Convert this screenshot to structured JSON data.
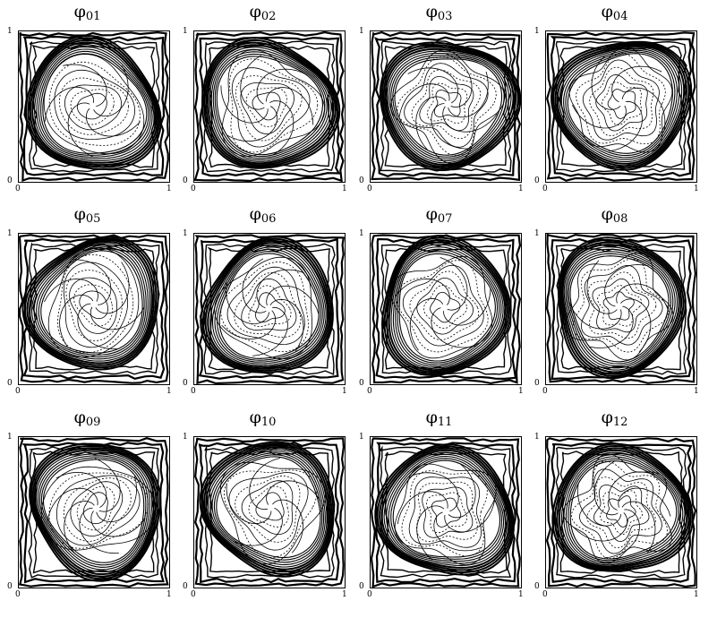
{
  "figure": {
    "panels": [
      {
        "symbol": "φ",
        "sub": "01"
      },
      {
        "symbol": "φ",
        "sub": "02"
      },
      {
        "symbol": "φ",
        "sub": "03"
      },
      {
        "symbol": "φ",
        "sub": "04"
      },
      {
        "symbol": "φ",
        "sub": "05"
      },
      {
        "symbol": "φ",
        "sub": "06"
      },
      {
        "symbol": "φ",
        "sub": "07"
      },
      {
        "symbol": "φ",
        "sub": "08"
      },
      {
        "symbol": "φ",
        "sub": "09"
      },
      {
        "symbol": "φ",
        "sub": "10"
      },
      {
        "symbol": "φ",
        "sub": "11"
      },
      {
        "symbol": "φ",
        "sub": "12"
      }
    ],
    "axis_ticks": {
      "min": "0",
      "max": "1"
    },
    "colors": {
      "ink": "#000000",
      "background": "#ffffff"
    }
  }
}
